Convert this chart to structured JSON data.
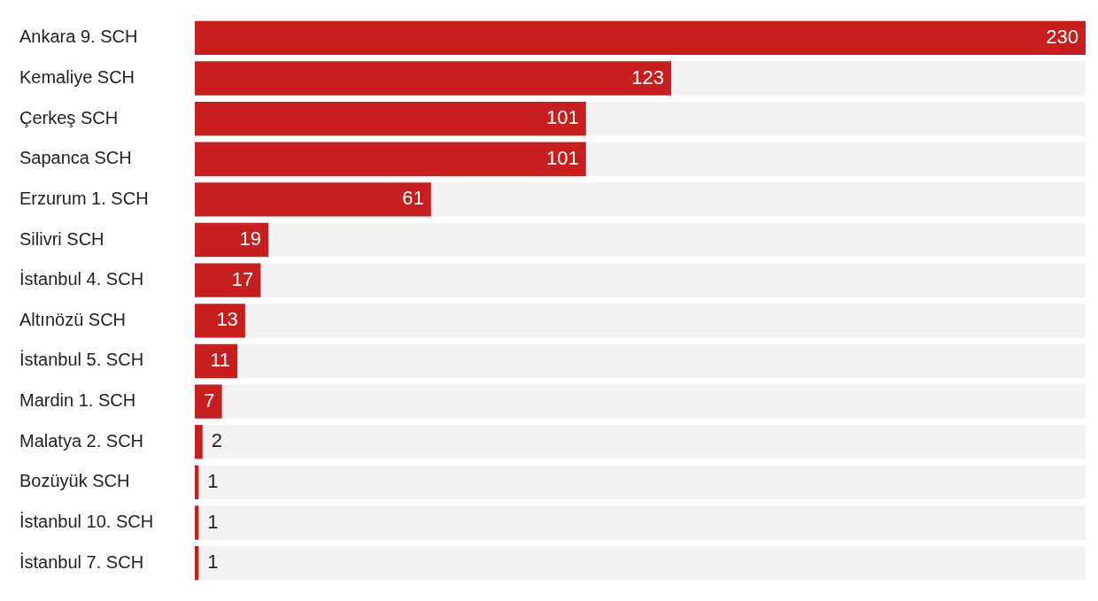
{
  "chart_data": {
    "type": "bar",
    "orientation": "horizontal",
    "categories": [
      "Ankara 9. SCH",
      "Kemaliye SCH",
      "Çerkeş SCH",
      "Sapanca SCH",
      "Erzurum 1. SCH",
      "Silivri SCH",
      "İstanbul 4. SCH",
      "Altınözü SCH",
      "İstanbul 5. SCH",
      "Mardin 1. SCH",
      "Malatya 2. SCH",
      "Bozüyük SCH",
      "İstanbul 10. SCH",
      "İstanbul 7. SCH"
    ],
    "values": [
      230,
      123,
      101,
      101,
      61,
      19,
      17,
      13,
      11,
      7,
      2,
      1,
      1,
      1
    ],
    "color": "#c81e1e",
    "data_labels": true,
    "legend": false,
    "tick_labels": "y"
  }
}
